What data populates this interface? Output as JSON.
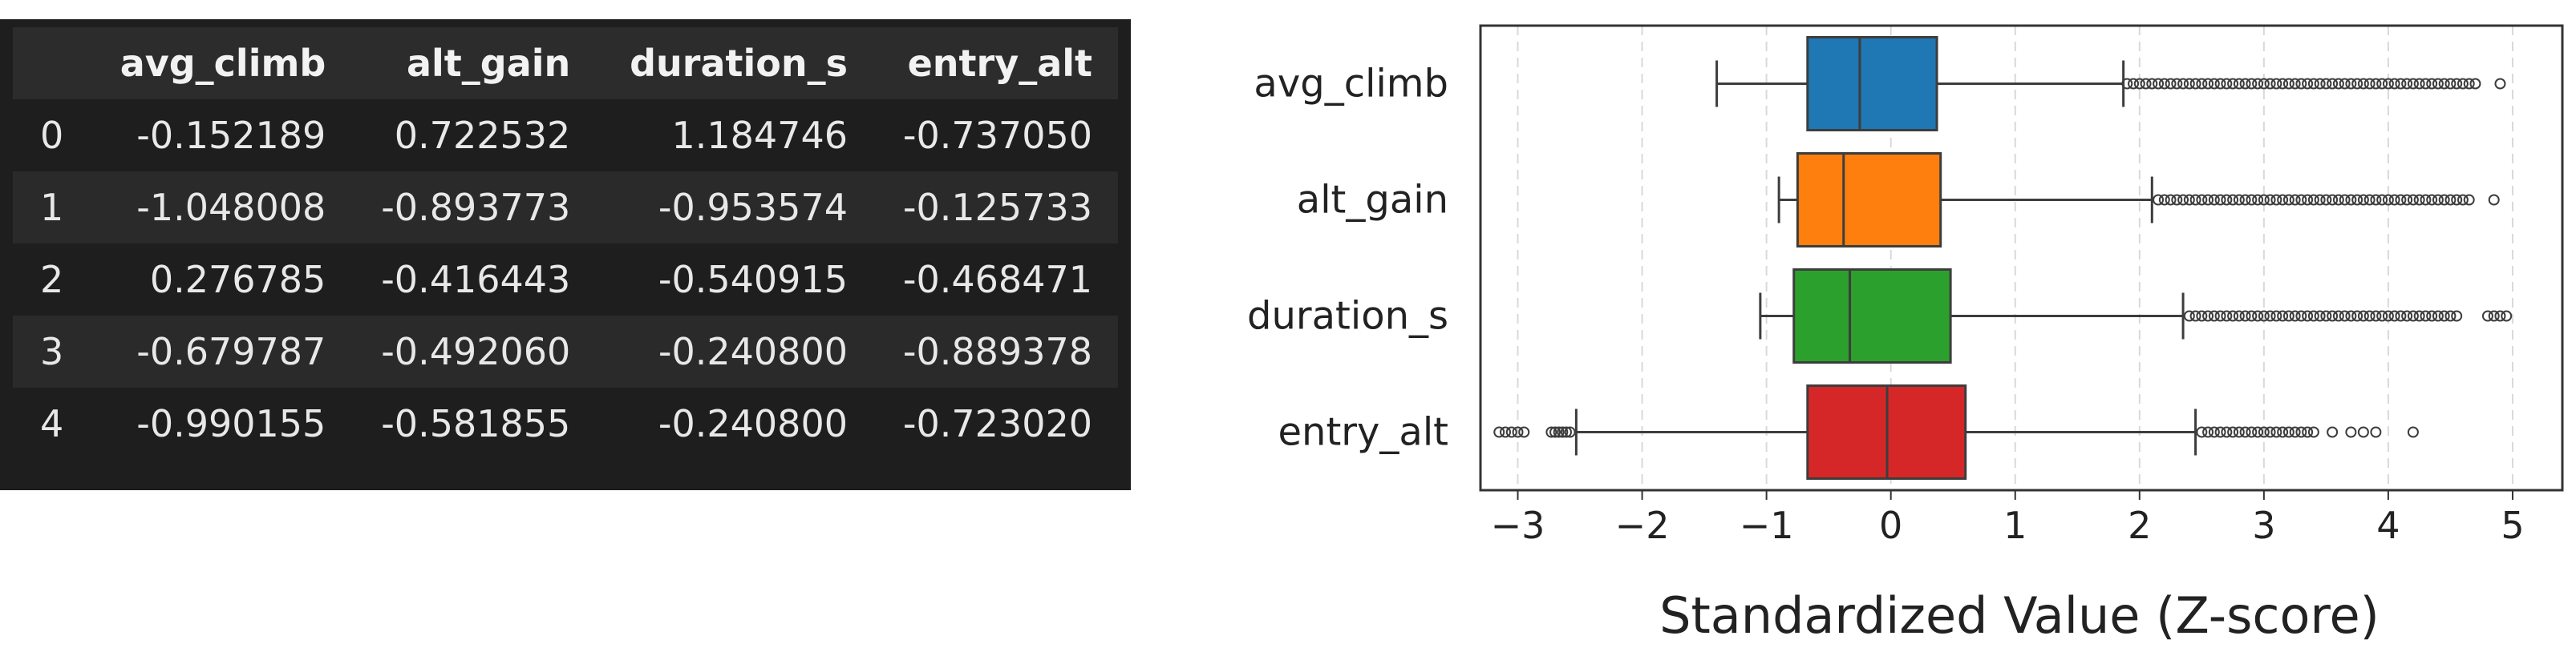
{
  "table": {
    "columns": [
      "avg_climb",
      "alt_gain",
      "duration_s",
      "entry_alt"
    ],
    "rows": [
      {
        "index": "0",
        "cells": [
          "-0.152189",
          "0.722532",
          "1.184746",
          "-0.737050"
        ]
      },
      {
        "index": "1",
        "cells": [
          "-1.048008",
          "-0.893773",
          "-0.953574",
          "-0.125733"
        ]
      },
      {
        "index": "2",
        "cells": [
          "0.276785",
          "-0.416443",
          "-0.540915",
          "-0.468471"
        ]
      },
      {
        "index": "3",
        "cells": [
          "-0.679787",
          "-0.492060",
          "-0.240800",
          "-0.889378"
        ]
      },
      {
        "index": "4",
        "cells": [
          "-0.990155",
          "-0.581855",
          "-0.240800",
          "-0.723020"
        ]
      }
    ]
  },
  "chart_data": {
    "type": "box",
    "orientation": "horizontal",
    "title": "",
    "xlabel": "Standardized Value (Z-score)",
    "ylabel": "",
    "xlim": [
      -3.3,
      5.4
    ],
    "xticks": [
      -3,
      -2,
      -1,
      0,
      1,
      2,
      3,
      4,
      5
    ],
    "xtick_labels": [
      "−3",
      "−2",
      "−1",
      "0",
      "1",
      "2",
      "3",
      "4",
      "5"
    ],
    "grid": "x-dashed",
    "categories": [
      "avg_climb",
      "alt_gain",
      "duration_s",
      "entry_alt"
    ],
    "series": [
      {
        "category": "avg_climb",
        "color": "#1f77b4",
        "whisker_low": -1.4,
        "q1": -0.67,
        "median": -0.25,
        "q3": 0.37,
        "whisker_high": 1.87,
        "outliers": [
          1.9,
          1.95,
          2.0,
          2.05,
          2.1,
          2.15,
          2.2,
          2.25,
          2.3,
          2.35,
          2.4,
          2.45,
          2.5,
          2.55,
          2.6,
          2.65,
          2.7,
          2.75,
          2.8,
          2.85,
          2.9,
          2.95,
          3.0,
          3.05,
          3.1,
          3.15,
          3.2,
          3.25,
          3.3,
          3.35,
          3.4,
          3.45,
          3.5,
          3.55,
          3.6,
          3.65,
          3.7,
          3.75,
          3.8,
          3.85,
          3.9,
          3.95,
          4.0,
          4.05,
          4.1,
          4.15,
          4.2,
          4.25,
          4.3,
          4.35,
          4.4,
          4.45,
          4.5,
          4.55,
          4.6,
          4.65,
          4.7,
          4.9
        ]
      },
      {
        "category": "alt_gain",
        "color": "#ff7f0e",
        "whisker_low": -0.9,
        "q1": -0.75,
        "median": -0.38,
        "q3": 0.4,
        "whisker_high": 2.1,
        "outliers": [
          2.15,
          2.2,
          2.25,
          2.3,
          2.35,
          2.4,
          2.45,
          2.5,
          2.55,
          2.6,
          2.65,
          2.7,
          2.75,
          2.8,
          2.85,
          2.9,
          2.95,
          3.0,
          3.05,
          3.1,
          3.15,
          3.2,
          3.25,
          3.3,
          3.35,
          3.4,
          3.45,
          3.5,
          3.55,
          3.6,
          3.65,
          3.7,
          3.75,
          3.8,
          3.85,
          3.9,
          3.95,
          4.0,
          4.05,
          4.1,
          4.15,
          4.2,
          4.25,
          4.3,
          4.35,
          4.4,
          4.45,
          4.5,
          4.55,
          4.6,
          4.65,
          4.85
        ]
      },
      {
        "category": "duration_s",
        "color": "#2ca02c",
        "whisker_low": -1.05,
        "q1": -0.78,
        "median": -0.33,
        "q3": 0.48,
        "whisker_high": 2.35,
        "outliers": [
          2.4,
          2.45,
          2.5,
          2.55,
          2.6,
          2.65,
          2.7,
          2.75,
          2.8,
          2.85,
          2.9,
          2.95,
          3.0,
          3.05,
          3.1,
          3.15,
          3.2,
          3.25,
          3.3,
          3.35,
          3.4,
          3.45,
          3.5,
          3.55,
          3.6,
          3.65,
          3.7,
          3.75,
          3.8,
          3.85,
          3.9,
          3.95,
          4.0,
          4.05,
          4.1,
          4.15,
          4.2,
          4.25,
          4.3,
          4.35,
          4.4,
          4.45,
          4.5,
          4.55,
          4.8,
          4.85,
          4.9,
          4.95
        ]
      },
      {
        "category": "entry_alt",
        "color": "#d62728",
        "whisker_low": -2.53,
        "q1": -0.67,
        "median": -0.03,
        "q3": 0.6,
        "whisker_high": 2.45,
        "outliers": [
          -3.15,
          -3.1,
          -3.05,
          -3.0,
          -2.95,
          -2.73,
          -2.7,
          -2.67,
          -2.64,
          -2.61,
          -2.58,
          2.5,
          2.55,
          2.6,
          2.65,
          2.7,
          2.75,
          2.8,
          2.85,
          2.9,
          2.95,
          3.0,
          3.05,
          3.1,
          3.15,
          3.2,
          3.25,
          3.3,
          3.35,
          3.4,
          3.55,
          3.7,
          3.8,
          3.9,
          4.2
        ]
      }
    ]
  }
}
